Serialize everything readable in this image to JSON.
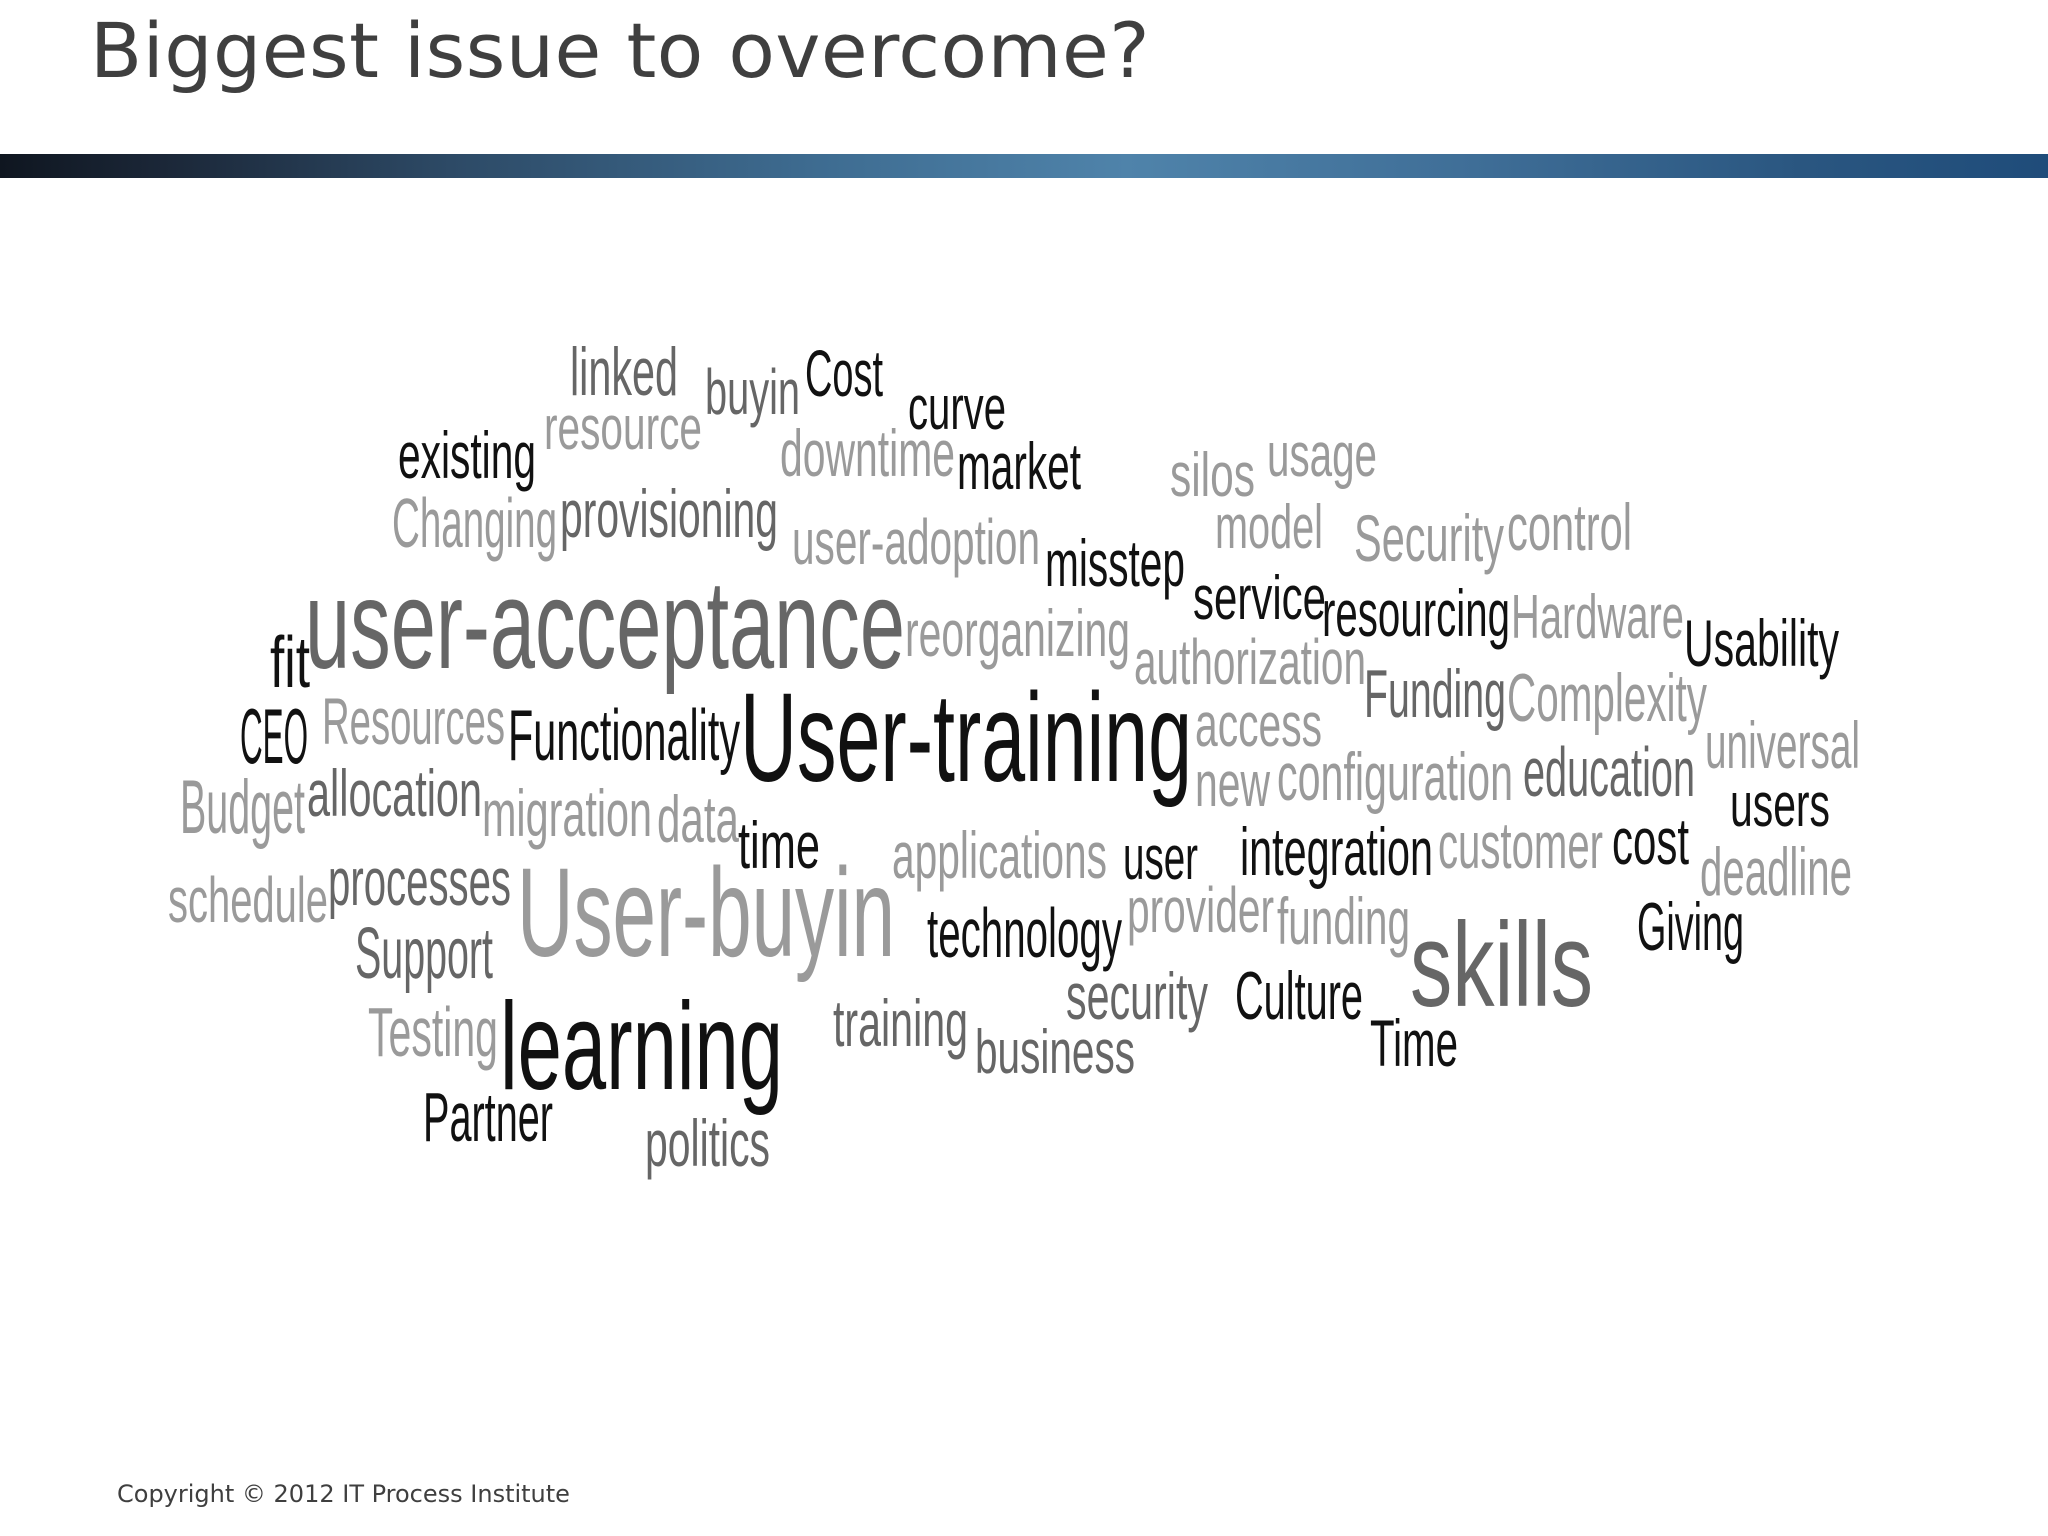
{
  "title": "Biggest issue to overcome?",
  "footer": {
    "copyright": "Copyright © 2012 IT Process Institute"
  },
  "colors": {
    "dark": "#111111",
    "mid": "#666666",
    "light": "#9a9a9a"
  },
  "word_cloud": {
    "words": [
      {
        "text": "linked",
        "shade": "mid"
      },
      {
        "text": "buyin",
        "shade": "mid"
      },
      {
        "text": "Cost",
        "shade": "dark"
      },
      {
        "text": "curve",
        "shade": "dark"
      },
      {
        "text": "existing",
        "shade": "dark"
      },
      {
        "text": "resource",
        "shade": "light"
      },
      {
        "text": "downtime",
        "shade": "light"
      },
      {
        "text": "market",
        "shade": "dark"
      },
      {
        "text": "silos",
        "shade": "light"
      },
      {
        "text": "usage",
        "shade": "light"
      },
      {
        "text": "Changing",
        "shade": "light"
      },
      {
        "text": "provisioning",
        "shade": "mid"
      },
      {
        "text": "user-adoption",
        "shade": "light"
      },
      {
        "text": "misstep",
        "shade": "dark"
      },
      {
        "text": "model",
        "shade": "light"
      },
      {
        "text": "Security",
        "shade": "light"
      },
      {
        "text": "control",
        "shade": "light"
      },
      {
        "text": "user-acceptance",
        "shade": "mid"
      },
      {
        "text": "reorganizing",
        "shade": "light"
      },
      {
        "text": "service",
        "shade": "dark"
      },
      {
        "text": "resourcing",
        "shade": "dark"
      },
      {
        "text": "Hardware",
        "shade": "light"
      },
      {
        "text": "Usability",
        "shade": "dark"
      },
      {
        "text": "fit",
        "shade": "dark"
      },
      {
        "text": "authorization",
        "shade": "light"
      },
      {
        "text": "Funding",
        "shade": "mid"
      },
      {
        "text": "Complexity",
        "shade": "light"
      },
      {
        "text": "CEO",
        "shade": "dark"
      },
      {
        "text": "Resources",
        "shade": "light"
      },
      {
        "text": "Functionality",
        "shade": "dark"
      },
      {
        "text": "User-training",
        "shade": "dark"
      },
      {
        "text": "access",
        "shade": "light"
      },
      {
        "text": "universal",
        "shade": "light"
      },
      {
        "text": "Budget",
        "shade": "light"
      },
      {
        "text": "allocation",
        "shade": "mid"
      },
      {
        "text": "migration",
        "shade": "light"
      },
      {
        "text": "data",
        "shade": "light"
      },
      {
        "text": "new",
        "shade": "light"
      },
      {
        "text": "configuration",
        "shade": "light"
      },
      {
        "text": "education",
        "shade": "mid"
      },
      {
        "text": "users",
        "shade": "dark"
      },
      {
        "text": "time",
        "shade": "dark"
      },
      {
        "text": "applications",
        "shade": "light"
      },
      {
        "text": "user",
        "shade": "dark"
      },
      {
        "text": "integration",
        "shade": "dark"
      },
      {
        "text": "customer",
        "shade": "light"
      },
      {
        "text": "cost",
        "shade": "dark"
      },
      {
        "text": "deadline",
        "shade": "light"
      },
      {
        "text": "schedule",
        "shade": "light"
      },
      {
        "text": "processes",
        "shade": "mid"
      },
      {
        "text": "User-buyin",
        "shade": "light"
      },
      {
        "text": "provider",
        "shade": "light"
      },
      {
        "text": "funding",
        "shade": "light"
      },
      {
        "text": "Giving",
        "shade": "dark"
      },
      {
        "text": "technology",
        "shade": "dark"
      },
      {
        "text": "skills",
        "shade": "mid"
      },
      {
        "text": "Support",
        "shade": "mid"
      },
      {
        "text": "security",
        "shade": "mid"
      },
      {
        "text": "Culture",
        "shade": "dark"
      },
      {
        "text": "Testing",
        "shade": "light"
      },
      {
        "text": "learning",
        "shade": "dark"
      },
      {
        "text": "training",
        "shade": "mid"
      },
      {
        "text": "Time",
        "shade": "dark"
      },
      {
        "text": "business",
        "shade": "mid"
      },
      {
        "text": "Partner",
        "shade": "dark"
      },
      {
        "text": "politics",
        "shade": "mid"
      }
    ]
  }
}
